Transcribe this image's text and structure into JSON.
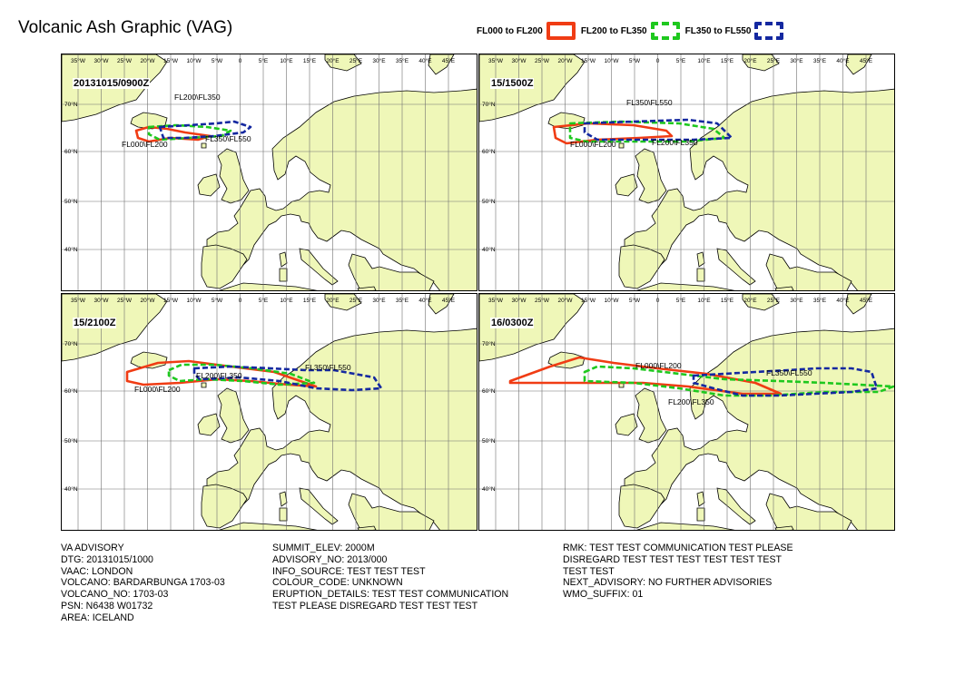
{
  "title": "Volcanic Ash Graphic (VAG)",
  "legend": [
    {
      "label": "FL000 to FL200",
      "color": "#f03c14",
      "style": "solid"
    },
    {
      "label": "FL200 to FL350",
      "color": "#1ec81e",
      "style": "dashed"
    },
    {
      "label": "FL350 to FL550",
      "color": "#1428a0",
      "style": "dashed"
    }
  ],
  "colors": {
    "land": "#eff7b8",
    "sea": "#ffffff",
    "grid": "#707070"
  },
  "map": {
    "lon_labels": [
      "35°W",
      "30°W",
      "25°W",
      "20°W",
      "15°W",
      "10°W",
      "5°W",
      "0",
      "5°E",
      "10°E",
      "15°E",
      "20°E",
      "25°E",
      "30°E",
      "35°E",
      "40°E",
      "45°E"
    ],
    "lat_labels": [
      "70°N",
      "60°N",
      "50°N",
      "40°N"
    ],
    "panels": [
      {
        "time": "20131015/0900Z",
        "labels": [
          {
            "text": "FL200\\FL350"
          },
          {
            "text": "FL000\\FL200"
          },
          {
            "text": "FL350\\FL550"
          }
        ]
      },
      {
        "time": "15/1500Z",
        "labels": [
          {
            "text": "FL350\\FL550"
          },
          {
            "text": "FL000\\FL200"
          },
          {
            "text": "FL200\\FL350"
          }
        ]
      },
      {
        "time": "15/2100Z",
        "labels": [
          {
            "text": "FL200\\FL350"
          },
          {
            "text": "FL000\\FL200"
          },
          {
            "text": "FL350\\FL550"
          }
        ]
      },
      {
        "time": "16/0300Z",
        "labels": [
          {
            "text": "FL000\\FL200"
          },
          {
            "text": "FL350\\FL550"
          },
          {
            "text": "FL200\\FL350"
          }
        ]
      }
    ]
  },
  "advisory": {
    "col1": [
      "VA ADVISORY",
      "DTG: 20131015/1000",
      "VAAC: LONDON",
      "VOLCANO: BARDARBUNGA 1703-03",
      "VOLCANO_NO: 1703-03",
      "PSN: N6438 W01732",
      "AREA: ICELAND"
    ],
    "col2": [
      "SUMMIT_ELEV: 2000M",
      "ADVISORY_NO: 2013/000",
      "INFO_SOURCE: TEST TEST TEST",
      "COLOUR_CODE: UNKNOWN",
      "ERUPTION_DETAILS: TEST TEST COMMUNICATION",
      "TEST PLEASE DISREGARD TEST TEST TEST"
    ],
    "col3": [
      "RMK: TEST TEST COMMUNICATION TEST PLEASE",
      "DISREGARD TEST TEST TEST TEST TEST TEST",
      "TEST TEST",
      "NEXT_ADVISORY: NO FURTHER ADVISORIES",
      "WMO_SUFFIX: 01"
    ]
  }
}
